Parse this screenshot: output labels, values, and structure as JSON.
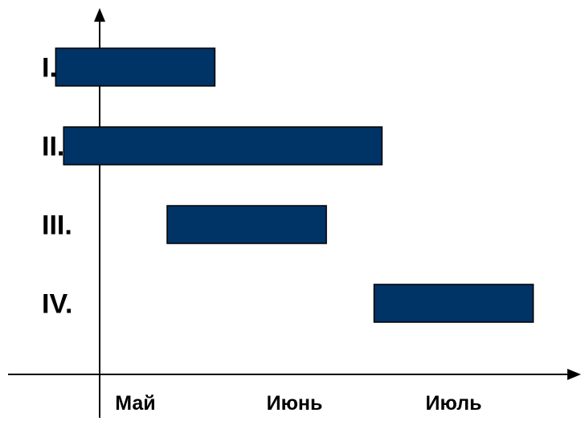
{
  "chart_data": {
    "type": "bar",
    "orientation": "horizontal",
    "title": "",
    "xlabel": "",
    "ylabel": "",
    "categories": [
      "I.",
      "II.",
      "III.",
      "IV."
    ],
    "x_ticks": [
      "Май",
      "Июнь",
      "Июль"
    ],
    "x_range": [
      -0.35,
      3.3
    ],
    "grid": false,
    "bar_color": "#003366",
    "tasks": [
      {
        "label": "I.",
        "start": 0.0,
        "end": 1.0
      },
      {
        "label": "II.",
        "start": 0.05,
        "end": 2.05
      },
      {
        "label": "III.",
        "start": 0.7,
        "end": 1.7
      },
      {
        "label": "IV.",
        "start": 2.0,
        "end": 3.0
      }
    ]
  }
}
